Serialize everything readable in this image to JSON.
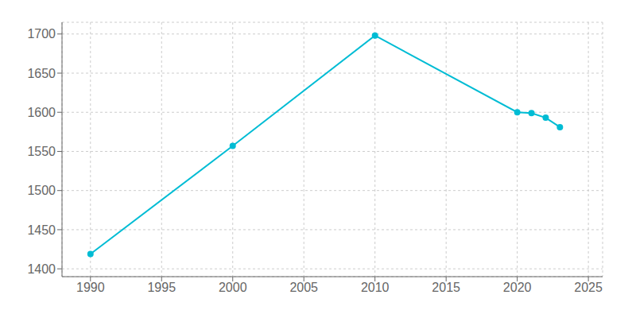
{
  "chart_data": {
    "type": "line",
    "x": [
      1990,
      2000,
      2010,
      2020,
      2021,
      2022,
      2023
    ],
    "values": [
      1419,
      1557,
      1698,
      1600,
      1599,
      1593,
      1581
    ],
    "color": "#00BCD4",
    "marker": "circle",
    "xlim": [
      1988,
      2026
    ],
    "ylim": [
      1390,
      1715
    ],
    "xticks": [
      1990,
      1995,
      2000,
      2005,
      2010,
      2015,
      2020,
      2025
    ],
    "yticks": [
      1400,
      1450,
      1500,
      1550,
      1600,
      1650,
      1700
    ],
    "grid": true
  }
}
